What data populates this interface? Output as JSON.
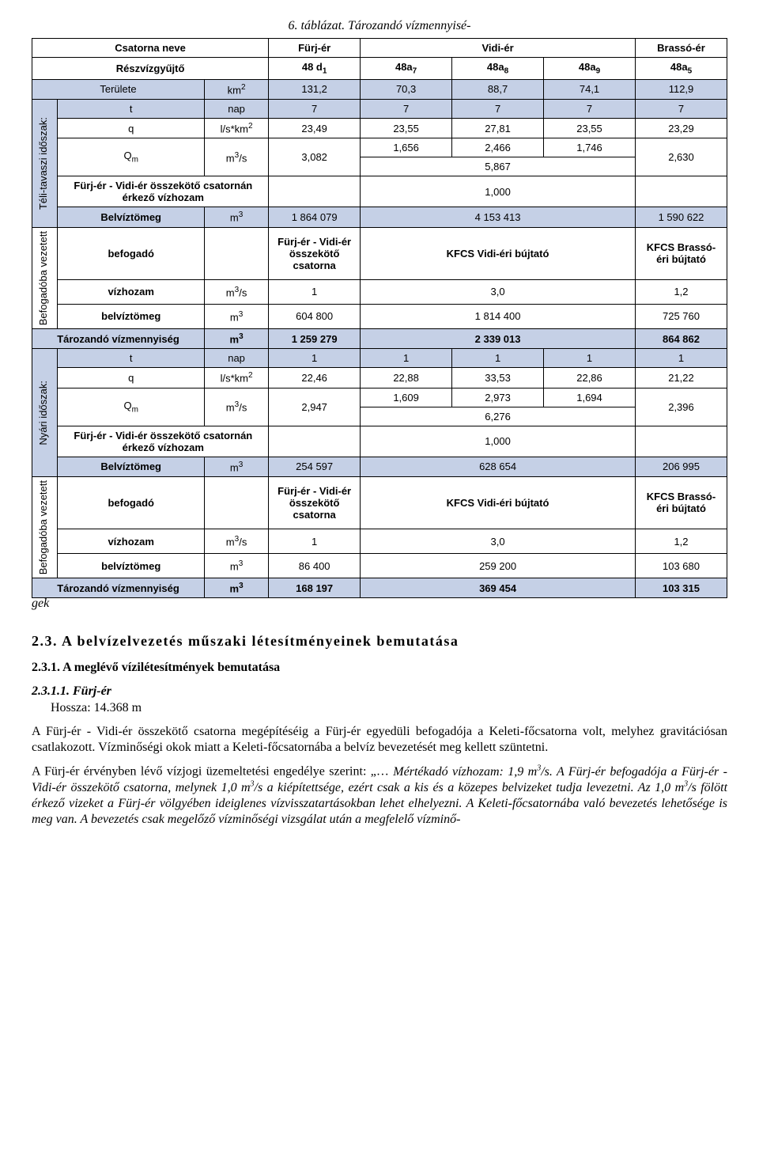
{
  "title": "6. táblázat. Tározandó vízmennyisé-",
  "tbl": {
    "hdr": {
      "csatorna": "Csatorna neve",
      "furj": "Fürj-ér",
      "vidi": "Vidi-ér",
      "brasso": "Brassó-ér",
      "reszviz": "Részvízgyűjtő",
      "d1": "48 d",
      "d1s": "1",
      "a7": "48a",
      "a7s": "7",
      "a8": "48a",
      "a8s": "8",
      "a9": "48a",
      "a9s": "9",
      "a5": "48a",
      "a5s": "5",
      "terulete": "Területe",
      "km2": "km",
      "km2s": "2",
      "ter_v": [
        "131,2",
        "70,3",
        "88,7",
        "74,1",
        "112,9"
      ]
    },
    "teli": {
      "label": "Téli-tavaszi időszak:",
      "t": "t",
      "nap": "nap",
      "tv": [
        "7",
        "7",
        "7",
        "7",
        "7"
      ],
      "q": "q",
      "qunit": "l/s*km",
      "qunits": "2",
      "qv": [
        "23,49",
        "23,55",
        "27,81",
        "23,55",
        "23,29"
      ],
      "Qm": "Q",
      "Qms": "m",
      "m3s": "m",
      "m3ss": "3",
      "m3s_s": "/s",
      "Qmv": "3,082",
      "qtop": [
        "1,656",
        "2,466",
        "1,746"
      ],
      "qbot": "5,867",
      "qlast": "2,630",
      "connector": "Fürj-ér - Vidi-ér összekötő csatornán érkező vízhozam",
      "conn_v": "1,000",
      "belviztomeg": "Belvíztömeg",
      "m3": "m",
      "m3s2": "3",
      "bv": [
        "1 864 079",
        "4 153 413",
        "1 590 622"
      ]
    },
    "befo1": {
      "label": "Befogadóba vezetett",
      "befogado": "befogadó",
      "bef_c1": "Fürj-ér - Vidi-ér összekötő csatorna",
      "bef_c2": "KFCS Vidi-éri bújtató",
      "bef_c3": "KFCS Brassó-éri bújtató",
      "vizhozam": "vízhozam",
      "vh_v": [
        "1",
        "3,0",
        "1,2"
      ],
      "belviztomeg": "belvíztömeg",
      "bvt_v": [
        "604 800",
        "1 814 400",
        "725 760"
      ]
    },
    "tarozando1": {
      "label": "Tározandó vízmennyiség",
      "v": [
        "1 259 279",
        "2 339 013",
        "864 862"
      ]
    },
    "nyari": {
      "label": "Nyári időszak:",
      "tv": [
        "1",
        "1",
        "1",
        "1",
        "1"
      ],
      "qv": [
        "22,46",
        "22,88",
        "33,53",
        "22,86",
        "21,22"
      ],
      "Qmv": "2,947",
      "qtop": [
        "1,609",
        "2,973",
        "1,694"
      ],
      "qbot": "6,276",
      "qlast": "2,396",
      "conn_v": "1,000",
      "bv": [
        "254 597",
        "628 654",
        "206 995"
      ]
    },
    "befo2": {
      "vh_v": [
        "1",
        "3,0",
        "1,2"
      ],
      "bvt_v": [
        "86 400",
        "259 200",
        "103 680"
      ]
    },
    "tarozando2": {
      "v": [
        "168 197",
        "369 454",
        "103 315"
      ]
    }
  },
  "gek": "gek",
  "h2": "2.3. A belvízelvezetés műszaki létesítményeinek bemutatása",
  "h3": "2.3.1. A meglévő vízilétesítmények bemutatása",
  "h4_num": "2.3.1.1. Fürj-ér",
  "h4_sub": "Hossza: 14.368 m",
  "p1": "A Fürj-ér - Vidi-ér összekötő csatorna megépítéséig a Fürj-ér egyedüli befogadója a Keleti-főcsatorna volt, melyhez gravitációsan csatlakozott. Vízminőségi okok miatt a Keleti-főcsatornába a belvíz bevezetését meg kellett szüntetni.",
  "p2a": "A Fürj-ér érvényben lévő vízjogi üzemeltetési engedélye szerint: „… ",
  "p2i": "Mértékadó vízhozam: 1,9 m",
  "p2is": "3",
  "p2i2": "/s. A Fürj-ér befogadója a Fürj-ér - Vidi-ér összekötő csatorna, melynek 1,0 m",
  "p2i3": "/s a kiépítettsége, ezért csak a kis és a közepes belvizeket tudja levezetni. Az 1,0 m",
  "p2i4": "/s fölött érkező vizeket a Fürj-ér völgyében ideiglenes vízvisszatartásokban lehet elhelyezni. A Keleti-főcsatornába való bevezetés lehetősége is meg van. A bevezetés csak megelőző vízminőségi vizsgálat után a megfelelő vízminő-"
}
